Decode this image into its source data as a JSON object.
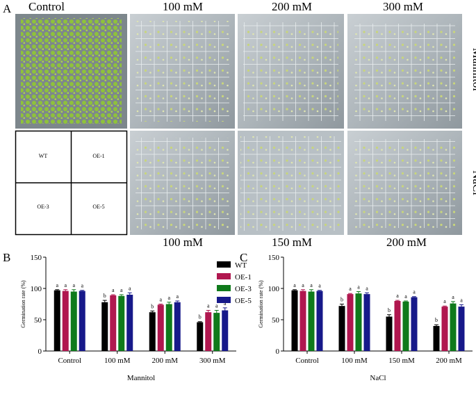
{
  "panel_a": {
    "label": "A",
    "top_labels": [
      "Control",
      "100 mM",
      "200 mM",
      "300 mM"
    ],
    "bottom_labels": [
      "100 mM",
      "150 mM",
      "200 mM"
    ],
    "side_labels": [
      "Mannitol",
      "NaCl"
    ],
    "layout_key": [
      "WT",
      "OE-1",
      "OE-3",
      "OE-5"
    ]
  },
  "chart_data": [
    {
      "type": "bar",
      "panel": "B",
      "xlabel": "Mannitol",
      "ylabel": "Germination rate (%)",
      "categories": [
        "Control",
        "100 mM",
        "200 mM",
        "300 mM"
      ],
      "ylim": [
        0,
        150
      ],
      "yticks": [
        0,
        50,
        100,
        150
      ],
      "legend": true,
      "series": [
        {
          "name": "WT",
          "color": "#000000",
          "values": [
            97,
            78,
            62,
            46
          ],
          "errors": [
            1,
            3,
            2,
            1
          ],
          "significance": [
            "a",
            "b",
            "b",
            "b"
          ]
        },
        {
          "name": "OE-1",
          "color": "#b0174f",
          "values": [
            96,
            89,
            74,
            62
          ],
          "errors": [
            2,
            1,
            1,
            3
          ],
          "significance": [
            "a",
            "a",
            "a",
            "a"
          ]
        },
        {
          "name": "OE-3",
          "color": "#0f7a1b",
          "values": [
            95,
            88,
            75,
            61
          ],
          "errors": [
            3,
            2,
            3,
            4
          ],
          "significance": [
            "a",
            "a",
            "a",
            "a"
          ]
        },
        {
          "name": "OE-5",
          "color": "#17198a",
          "values": [
            96,
            90,
            78,
            65
          ],
          "errors": [
            1,
            3,
            2,
            4
          ],
          "significance": [
            "a",
            "a",
            "a",
            "a"
          ]
        }
      ]
    },
    {
      "type": "bar",
      "panel": "C",
      "xlabel": "NaCl",
      "ylabel": "Germination rate (%)",
      "categories": [
        "Control",
        "100 mM",
        "150 mM",
        "200 mM"
      ],
      "ylim": [
        0,
        150
      ],
      "yticks": [
        0,
        50,
        100,
        150
      ],
      "legend": false,
      "series": [
        {
          "color": "#000000",
          "values": [
            97,
            72,
            55,
            40
          ],
          "errors": [
            1,
            3,
            3,
            2
          ],
          "significance": [
            "a",
            "b",
            "b",
            "b"
          ]
        },
        {
          "color": "#b0174f",
          "values": [
            96,
            91,
            80,
            71
          ],
          "errors": [
            2,
            1,
            1,
            1
          ],
          "significance": [
            "a",
            "a",
            "a",
            "a"
          ]
        },
        {
          "color": "#0f7a1b",
          "values": [
            95,
            92,
            79,
            76
          ],
          "errors": [
            3,
            3,
            1,
            3
          ],
          "significance": [
            "a",
            "a",
            "a",
            "a"
          ]
        },
        {
          "color": "#17198a",
          "values": [
            96,
            91,
            86,
            71
          ],
          "errors": [
            1,
            2,
            1,
            3
          ],
          "significance": [
            "a",
            "a",
            "a",
            "a"
          ]
        }
      ]
    }
  ]
}
